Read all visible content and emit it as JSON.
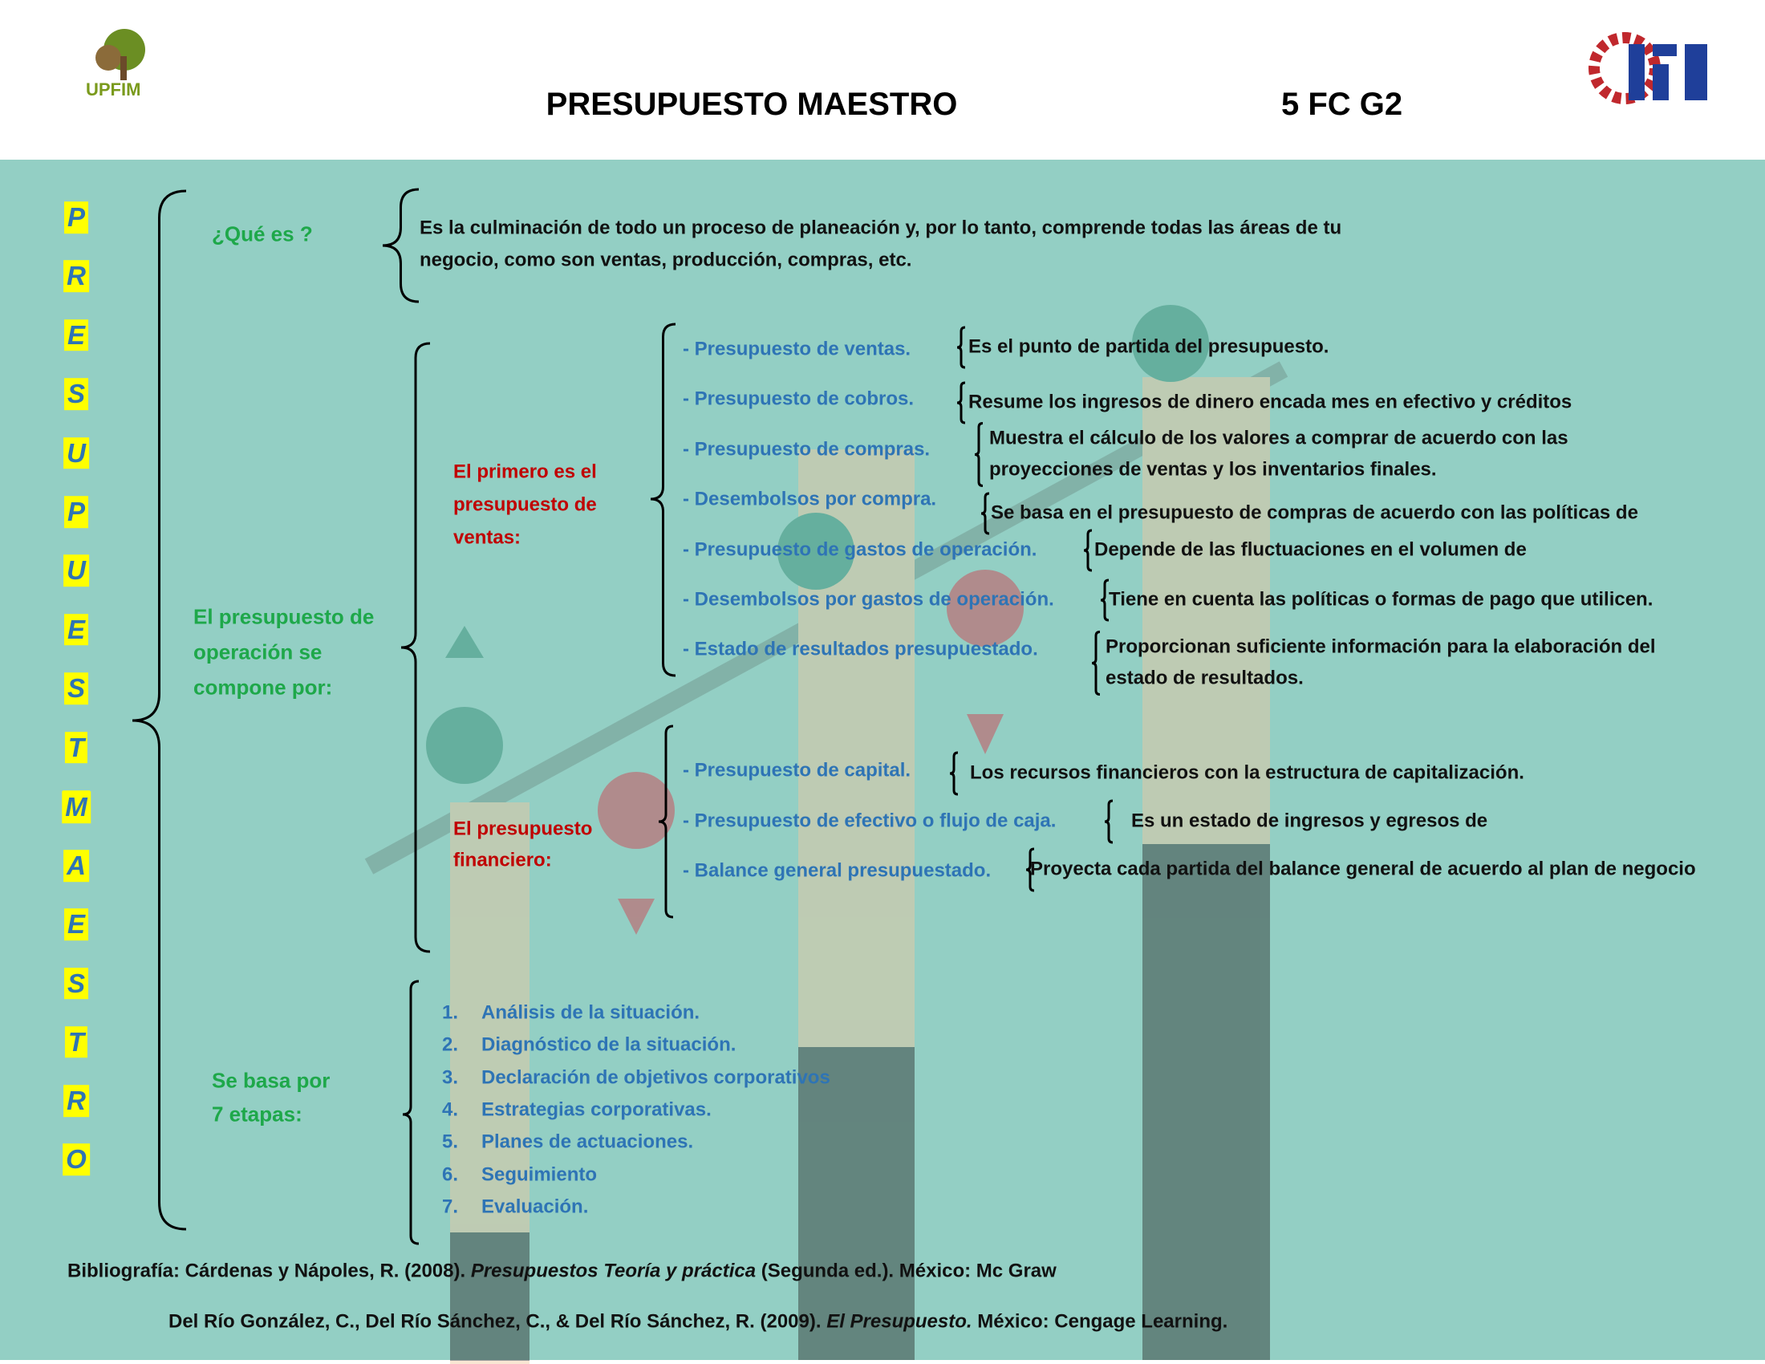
{
  "header": {
    "logo_left_text": "UPFIM",
    "title": "PRESUPUESTO MAESTRO",
    "group": "5 FC G2"
  },
  "side_title": [
    "P",
    "R",
    "E",
    "S",
    "U",
    "P",
    "U",
    "E",
    "S",
    "T",
    "O",
    "M",
    "A",
    "E",
    "S",
    "T",
    "R",
    "O"
  ],
  "definition": {
    "label": "¿Qué es ?",
    "lines": [
      "Es la culminación de todo un proceso de planeación y, por lo tanto, comprende todas las áreas de tu",
      "negocio, como son ventas, producción, compras, etc."
    ]
  },
  "operation": {
    "label_lines": [
      "El presupuesto de",
      "operación se",
      "compone por:"
    ],
    "sales": {
      "label_lines": [
        "El primero es el",
        "presupuesto de",
        "ventas:"
      ],
      "items": [
        {
          "name": "- Presupuesto de ventas.",
          "desc": [
            "Es el punto de partida del presupuesto."
          ]
        },
        {
          "name": "- Presupuesto de cobros.",
          "desc": [
            "Resume los ingresos de dinero encada mes en efectivo y créditos"
          ]
        },
        {
          "name": "- Presupuesto de compras.",
          "desc": [
            "Muestra el cálculo de los valores a comprar de acuerdo con las",
            "proyecciones de ventas y los inventarios finales."
          ]
        },
        {
          "name": "- Desembolsos por compra.",
          "desc": [
            "Se basa en el presupuesto de compras de acuerdo con las políticas de"
          ]
        },
        {
          "name": "- Presupuesto de gastos de operación.",
          "desc": [
            "Depende de las fluctuaciones en el volumen de"
          ]
        },
        {
          "name": "- Desembolsos por gastos de operación.",
          "desc": [
            "Tiene en cuenta las políticas o formas de pago que utilicen."
          ]
        },
        {
          "name": "- Estado de resultados presupuestado.",
          "desc": [
            "Proporcionan suficiente información para la elaboración del",
            "estado de resultados."
          ]
        }
      ]
    },
    "financial": {
      "label_lines": [
        "El presupuesto",
        "financiero:"
      ],
      "items": [
        {
          "name": "- Presupuesto de capital.",
          "desc": [
            "Los recursos financieros con la estructura de capitalización."
          ]
        },
        {
          "name": "- Presupuesto de efectivo o flujo de caja.",
          "desc": [
            "Es un estado de ingresos y egresos de"
          ]
        },
        {
          "name": "- Balance general presupuestado.",
          "desc": [
            "Proyecta cada partida del balance general de acuerdo al plan de negocio"
          ]
        }
      ]
    }
  },
  "stages": {
    "label_lines": [
      "Se basa por",
      "7 etapas:"
    ],
    "steps": [
      {
        "number": "1.",
        "text": "Análisis de la situación."
      },
      {
        "number": "2.",
        "text": "Diagnóstico de la situación."
      },
      {
        "number": "3.",
        "text": "Declaración de objetivos corporativos"
      },
      {
        "number": "4.",
        "text": "Estrategias corporativas."
      },
      {
        "number": "5.",
        "text": "Planes de actuaciones."
      },
      {
        "number": "6.",
        "text": "Seguimiento"
      },
      {
        "number": "7.",
        "text": "Evaluación."
      }
    ]
  },
  "bibliography": [
    {
      "text": "Bibliografía: Cárdenas y Nápoles, R. (2008). ",
      "title": "Presupuestos Teoría y práctica",
      "rest": " (Segunda ed.). México: Mc Graw"
    },
    {
      "text": "Del Río González, C., Del Río Sánchez, C., & Del Río Sánchez, R. (2009). ",
      "title": "El Presupuesto.",
      "rest": " México: Cengage Learning."
    }
  ]
}
